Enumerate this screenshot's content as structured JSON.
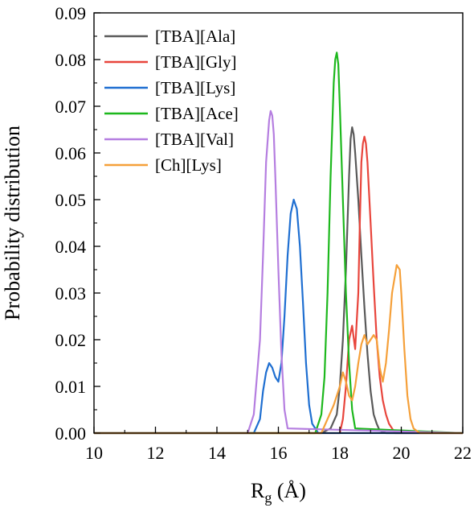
{
  "chart_data": {
    "type": "line",
    "title": "",
    "xlabel_main": "R",
    "xlabel_sub": "g",
    "xlabel_unit": " (Å)",
    "ylabel": "Probability distribution",
    "xlim": [
      10,
      22
    ],
    "ylim": [
      0,
      0.09
    ],
    "xticks": [
      "10",
      "12",
      "14",
      "16",
      "18",
      "20",
      "22"
    ],
    "yticks": [
      "0.00",
      "0.01",
      "0.02",
      "0.03",
      "0.04",
      "0.05",
      "0.06",
      "0.07",
      "0.08",
      "0.09"
    ],
    "legend_position": "top-left",
    "grid": false,
    "series": [
      {
        "name": "[TBA][Ala]",
        "color": "#595959",
        "x": [
          10,
          17.4,
          17.7,
          17.9,
          18.0,
          18.1,
          18.2,
          18.3,
          18.35,
          18.4,
          18.45,
          18.5,
          18.6,
          18.7,
          18.8,
          18.9,
          19.0,
          19.1,
          19.2,
          19.3,
          19.5,
          22
        ],
        "y": [
          0,
          0,
          0.001,
          0.004,
          0.01,
          0.02,
          0.035,
          0.055,
          0.063,
          0.0655,
          0.064,
          0.06,
          0.05,
          0.038,
          0.027,
          0.017,
          0.009,
          0.004,
          0.002,
          0.0005,
          0,
          0
        ]
      },
      {
        "name": "[TBA][Gly]",
        "color": "#e8453c",
        "x": [
          10,
          18.0,
          18.1,
          18.2,
          18.3,
          18.4,
          18.5,
          18.6,
          18.65,
          18.7,
          18.75,
          18.8,
          18.85,
          18.9,
          19.0,
          19.1,
          19.2,
          19.3,
          19.4,
          19.5,
          19.6,
          19.7,
          19.8,
          22
        ],
        "y": [
          0,
          0,
          0.003,
          0.01,
          0.02,
          0.023,
          0.018,
          0.03,
          0.045,
          0.058,
          0.062,
          0.0635,
          0.062,
          0.058,
          0.045,
          0.032,
          0.02,
          0.012,
          0.007,
          0.004,
          0.002,
          0.001,
          0,
          0
        ]
      },
      {
        "name": "[TBA][Lys]",
        "color": "#1f6fd1",
        "x": [
          10,
          15.2,
          15.4,
          15.5,
          15.6,
          15.7,
          15.8,
          15.9,
          16.0,
          16.1,
          16.2,
          16.3,
          16.4,
          16.5,
          16.6,
          16.7,
          16.8,
          16.9,
          17.0,
          17.1,
          17.3,
          22
        ],
        "y": [
          0,
          0,
          0.003,
          0.009,
          0.013,
          0.015,
          0.014,
          0.012,
          0.011,
          0.015,
          0.025,
          0.038,
          0.047,
          0.05,
          0.048,
          0.04,
          0.028,
          0.015,
          0.006,
          0.002,
          0,
          0
        ]
      },
      {
        "name": "[TBA][Ace]",
        "color": "#1db81d",
        "x": [
          10,
          17.2,
          17.4,
          17.5,
          17.6,
          17.7,
          17.8,
          17.85,
          17.9,
          17.95,
          18.0,
          18.1,
          18.2,
          18.3,
          18.4,
          18.5,
          22
        ],
        "y": [
          0,
          0,
          0.004,
          0.012,
          0.03,
          0.055,
          0.075,
          0.08,
          0.0815,
          0.079,
          0.07,
          0.05,
          0.03,
          0.015,
          0.005,
          0.001,
          0
        ]
      },
      {
        "name": "[TBA][Val]",
        "color": "#b57ee0",
        "x": [
          10,
          15.0,
          15.2,
          15.4,
          15.5,
          15.6,
          15.7,
          15.75,
          15.8,
          15.85,
          15.9,
          16.0,
          16.1,
          16.2,
          16.3,
          22
        ],
        "y": [
          0,
          0,
          0.004,
          0.02,
          0.038,
          0.058,
          0.067,
          0.069,
          0.068,
          0.064,
          0.055,
          0.035,
          0.017,
          0.005,
          0.001,
          0
        ]
      },
      {
        "name": "[Ch][Lys]",
        "color": "#f5a03a",
        "x": [
          10,
          17.4,
          17.6,
          17.8,
          18.0,
          18.1,
          18.2,
          18.3,
          18.4,
          18.5,
          18.6,
          18.7,
          18.8,
          18.9,
          19.0,
          19.1,
          19.2,
          19.3,
          19.4,
          19.5,
          19.6,
          19.7,
          19.8,
          19.85,
          19.9,
          19.95,
          20.0,
          20.1,
          20.2,
          20.3,
          20.4,
          20.6,
          21.0,
          22
        ],
        "y": [
          0,
          0,
          0.003,
          0.006,
          0.01,
          0.013,
          0.011,
          0.008,
          0.007,
          0.01,
          0.015,
          0.019,
          0.021,
          0.019,
          0.02,
          0.021,
          0.02,
          0.014,
          0.011,
          0.015,
          0.022,
          0.03,
          0.034,
          0.036,
          0.0355,
          0.035,
          0.03,
          0.018,
          0.008,
          0.003,
          0.001,
          0,
          0,
          0
        ]
      }
    ]
  }
}
